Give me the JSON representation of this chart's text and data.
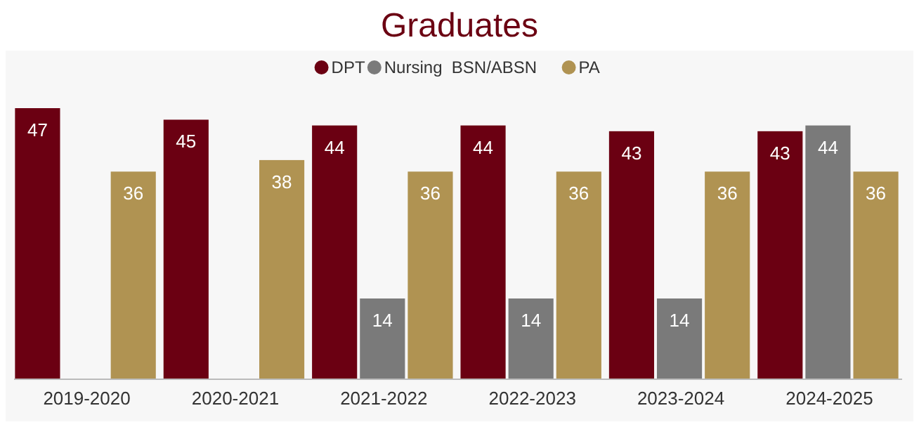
{
  "chart_data": {
    "type": "bar",
    "title": "Graduates",
    "categories": [
      "2019-2020",
      "2020-2021",
      "2021-2022",
      "2022-2023",
      "2023-2024",
      "2024-2025"
    ],
    "series": [
      {
        "name": "DPT",
        "color": "#6b0012",
        "values": [
          47,
          45,
          44,
          44,
          43,
          43
        ]
      },
      {
        "name": "Nursing  BSN/ABSN",
        "color": "#7a7a7a",
        "values": [
          null,
          null,
          14,
          14,
          14,
          44
        ]
      },
      {
        "name": "PA",
        "color": "#b09352",
        "values": [
          36,
          38,
          36,
          36,
          36,
          36
        ]
      }
    ],
    "data_labels": true,
    "legend": "top",
    "grid": false
  }
}
